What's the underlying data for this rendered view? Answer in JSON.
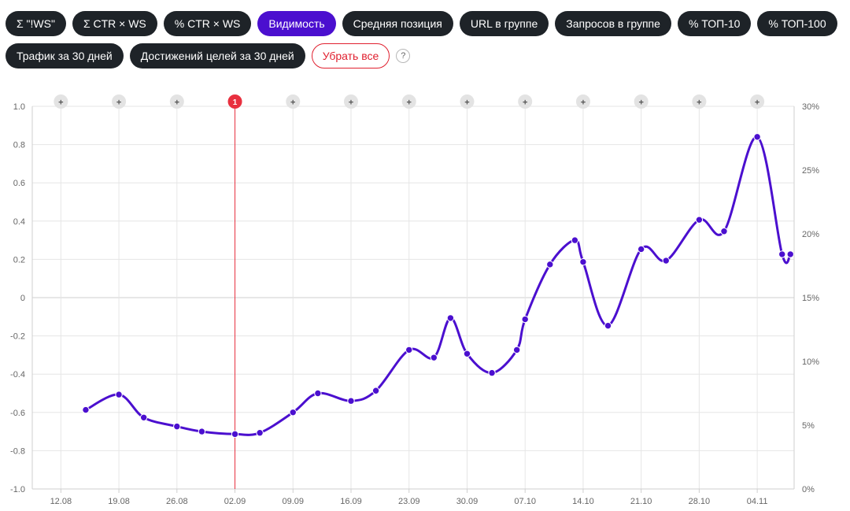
{
  "metrics": {
    "buttons": [
      {
        "label": "Σ \"!WS\"",
        "active": false
      },
      {
        "label": "Σ CTR × WS",
        "active": false
      },
      {
        "label": "% CTR × WS",
        "active": false
      },
      {
        "label": "Видимость",
        "active": true
      },
      {
        "label": "Средняя позиция",
        "active": false
      },
      {
        "label": "URL в группе",
        "active": false
      },
      {
        "label": "Запросов в группе",
        "active": false
      },
      {
        "label": "% ТОП-10",
        "active": false
      },
      {
        "label": "% ТОП-100",
        "active": false
      },
      {
        "label": "Трафик за 30 дней",
        "active": false
      },
      {
        "label": "Достижений целей за 30 дней",
        "active": false
      }
    ],
    "clear_label": "Убрать все",
    "help_label": "?"
  },
  "colors": {
    "series": "#4b0fcf",
    "marker": "#e8303f",
    "active_button": "#4b0fcf",
    "button": "#1e2328",
    "grid": "#e6e6e6",
    "axis_text": "#666666"
  },
  "chart_data": {
    "type": "line",
    "ylim": [
      -1.0,
      1.0
    ],
    "y_ticks": [
      "1.0",
      "0.8",
      "0.6",
      "0.4",
      "0.2",
      "0",
      "-0.2",
      "-0.4",
      "-0.6",
      "-0.8",
      "-1.0"
    ],
    "y2lim": [
      0,
      30
    ],
    "y2_ticks": [
      "30%",
      "25%",
      "20%",
      "15%",
      "10%",
      "5%",
      "0%"
    ],
    "x_domain_days": [
      "12.08",
      "08.11"
    ],
    "x_ticks": [
      "12.08",
      "19.08",
      "26.08",
      "02.09",
      "09.09",
      "16.09",
      "23.09",
      "30.09",
      "07.10",
      "14.10",
      "21.10",
      "28.10",
      "04.11"
    ],
    "grid": true,
    "top_markers": [
      {
        "x": "12.08",
        "label": "+",
        "highlight": false
      },
      {
        "x": "19.08",
        "label": "+",
        "highlight": false
      },
      {
        "x": "26.08",
        "label": "+",
        "highlight": false
      },
      {
        "x": "02.09",
        "label": "1",
        "highlight": true
      },
      {
        "x": "09.09",
        "label": "+",
        "highlight": false
      },
      {
        "x": "16.09",
        "label": "+",
        "highlight": false
      },
      {
        "x": "23.09",
        "label": "+",
        "highlight": false
      },
      {
        "x": "30.09",
        "label": "+",
        "highlight": false
      },
      {
        "x": "07.10",
        "label": "+",
        "highlight": false
      },
      {
        "x": "14.10",
        "label": "+",
        "highlight": false
      },
      {
        "x": "21.10",
        "label": "+",
        "highlight": false
      },
      {
        "x": "28.10",
        "label": "+",
        "highlight": false
      },
      {
        "x": "04.11",
        "label": "+",
        "highlight": false
      }
    ],
    "series": [
      {
        "axis": "right",
        "points": [
          {
            "x": "15.08",
            "y": 6.2
          },
          {
            "x": "19.08",
            "y": 7.4
          },
          {
            "x": "22.08",
            "y": 5.6
          },
          {
            "x": "26.08",
            "y": 4.9
          },
          {
            "x": "29.08",
            "y": 4.5
          },
          {
            "x": "02.09",
            "y": 4.3
          },
          {
            "x": "05.09",
            "y": 4.4
          },
          {
            "x": "09.09",
            "y": 6.0
          },
          {
            "x": "12.09",
            "y": 7.5
          },
          {
            "x": "16.09",
            "y": 6.9
          },
          {
            "x": "19.09",
            "y": 7.7
          },
          {
            "x": "23.09",
            "y": 10.9
          },
          {
            "x": "26.09",
            "y": 10.3
          },
          {
            "x": "28.09",
            "y": 13.4
          },
          {
            "x": "30.09",
            "y": 10.6
          },
          {
            "x": "03.10",
            "y": 9.1
          },
          {
            "x": "06.10",
            "y": 10.9
          },
          {
            "x": "07.10",
            "y": 13.3
          },
          {
            "x": "10.10",
            "y": 17.6
          },
          {
            "x": "13.10",
            "y": 19.5
          },
          {
            "x": "14.10",
            "y": 17.8
          },
          {
            "x": "17.10",
            "y": 12.8
          },
          {
            "x": "21.10",
            "y": 18.8
          },
          {
            "x": "24.10",
            "y": 17.9
          },
          {
            "x": "28.10",
            "y": 21.1
          },
          {
            "x": "31.10",
            "y": 20.2
          },
          {
            "x": "04.11",
            "y": 27.6
          },
          {
            "x": "07.11",
            "y": 18.4
          },
          {
            "x": "08.11",
            "y": 18.4
          }
        ]
      }
    ]
  }
}
